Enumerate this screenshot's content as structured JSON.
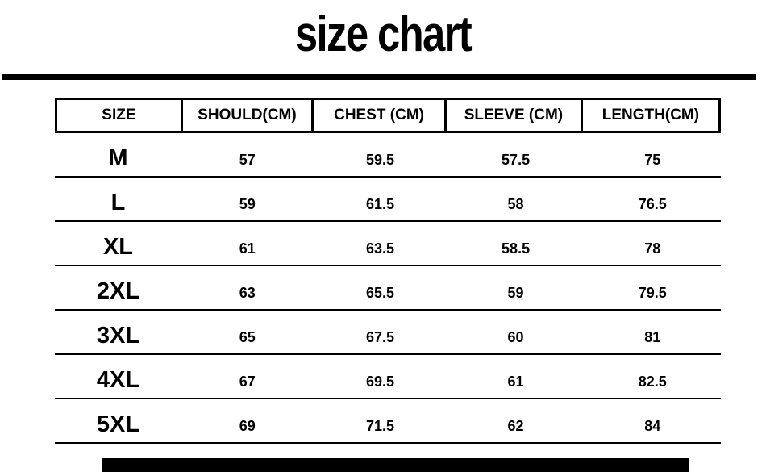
{
  "title": "size chart",
  "colors": {
    "text": "#000000",
    "background": "#ffffff",
    "rule": "#000000"
  },
  "chart_data": {
    "type": "table",
    "title": "size chart",
    "columns": [
      "SIZE",
      "SHOULD(CM)",
      "CHEST (CM)",
      "SLEEVE (CM)",
      "LENGTH(CM)"
    ],
    "rows": [
      [
        "M",
        "57",
        "59.5",
        "57.5",
        "75"
      ],
      [
        "L",
        "59",
        "61.5",
        "58",
        "76.5"
      ],
      [
        "XL",
        "61",
        "63.5",
        "58.5",
        "78"
      ],
      [
        "2XL",
        "63",
        "65.5",
        "59",
        "79.5"
      ],
      [
        "3XL",
        "65",
        "67.5",
        "60",
        "81"
      ],
      [
        "4XL",
        "67",
        "69.5",
        "61",
        "82.5"
      ],
      [
        "5XL",
        "69",
        "71.5",
        "62",
        "84"
      ]
    ],
    "units": "cm",
    "layout": {
      "header_border": true,
      "row_separators": true,
      "column_dividers_header_only": true
    }
  }
}
